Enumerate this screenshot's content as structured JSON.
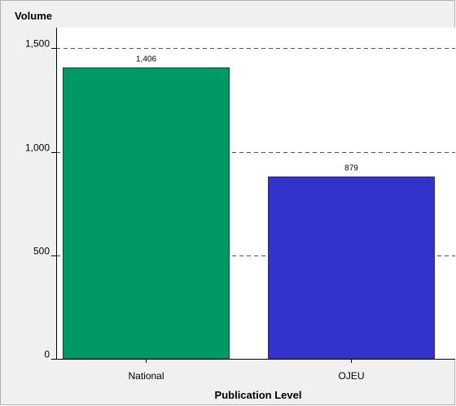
{
  "chart_data": {
    "type": "bar",
    "categories": [
      "National",
      "OJEU"
    ],
    "values": [
      1406,
      879
    ],
    "data_labels": [
      "1,406",
      "879"
    ],
    "colors": [
      "#009966",
      "#3333cc"
    ],
    "title": "",
    "ylabel": "Volume",
    "xlabel": "Publication Level",
    "ylim": [
      0,
      1600
    ],
    "yticks": [
      0,
      500,
      1000,
      1500
    ],
    "ytick_labels": [
      "0",
      "500",
      "1,000",
      "1,500"
    ],
    "grid": true,
    "legend": "none"
  },
  "theme": {
    "background": "#f0f0f0",
    "plot_background": "#ffffff",
    "border": "#b0b0b0",
    "grid_color": "#555555",
    "bar_stroke": "#333333"
  }
}
